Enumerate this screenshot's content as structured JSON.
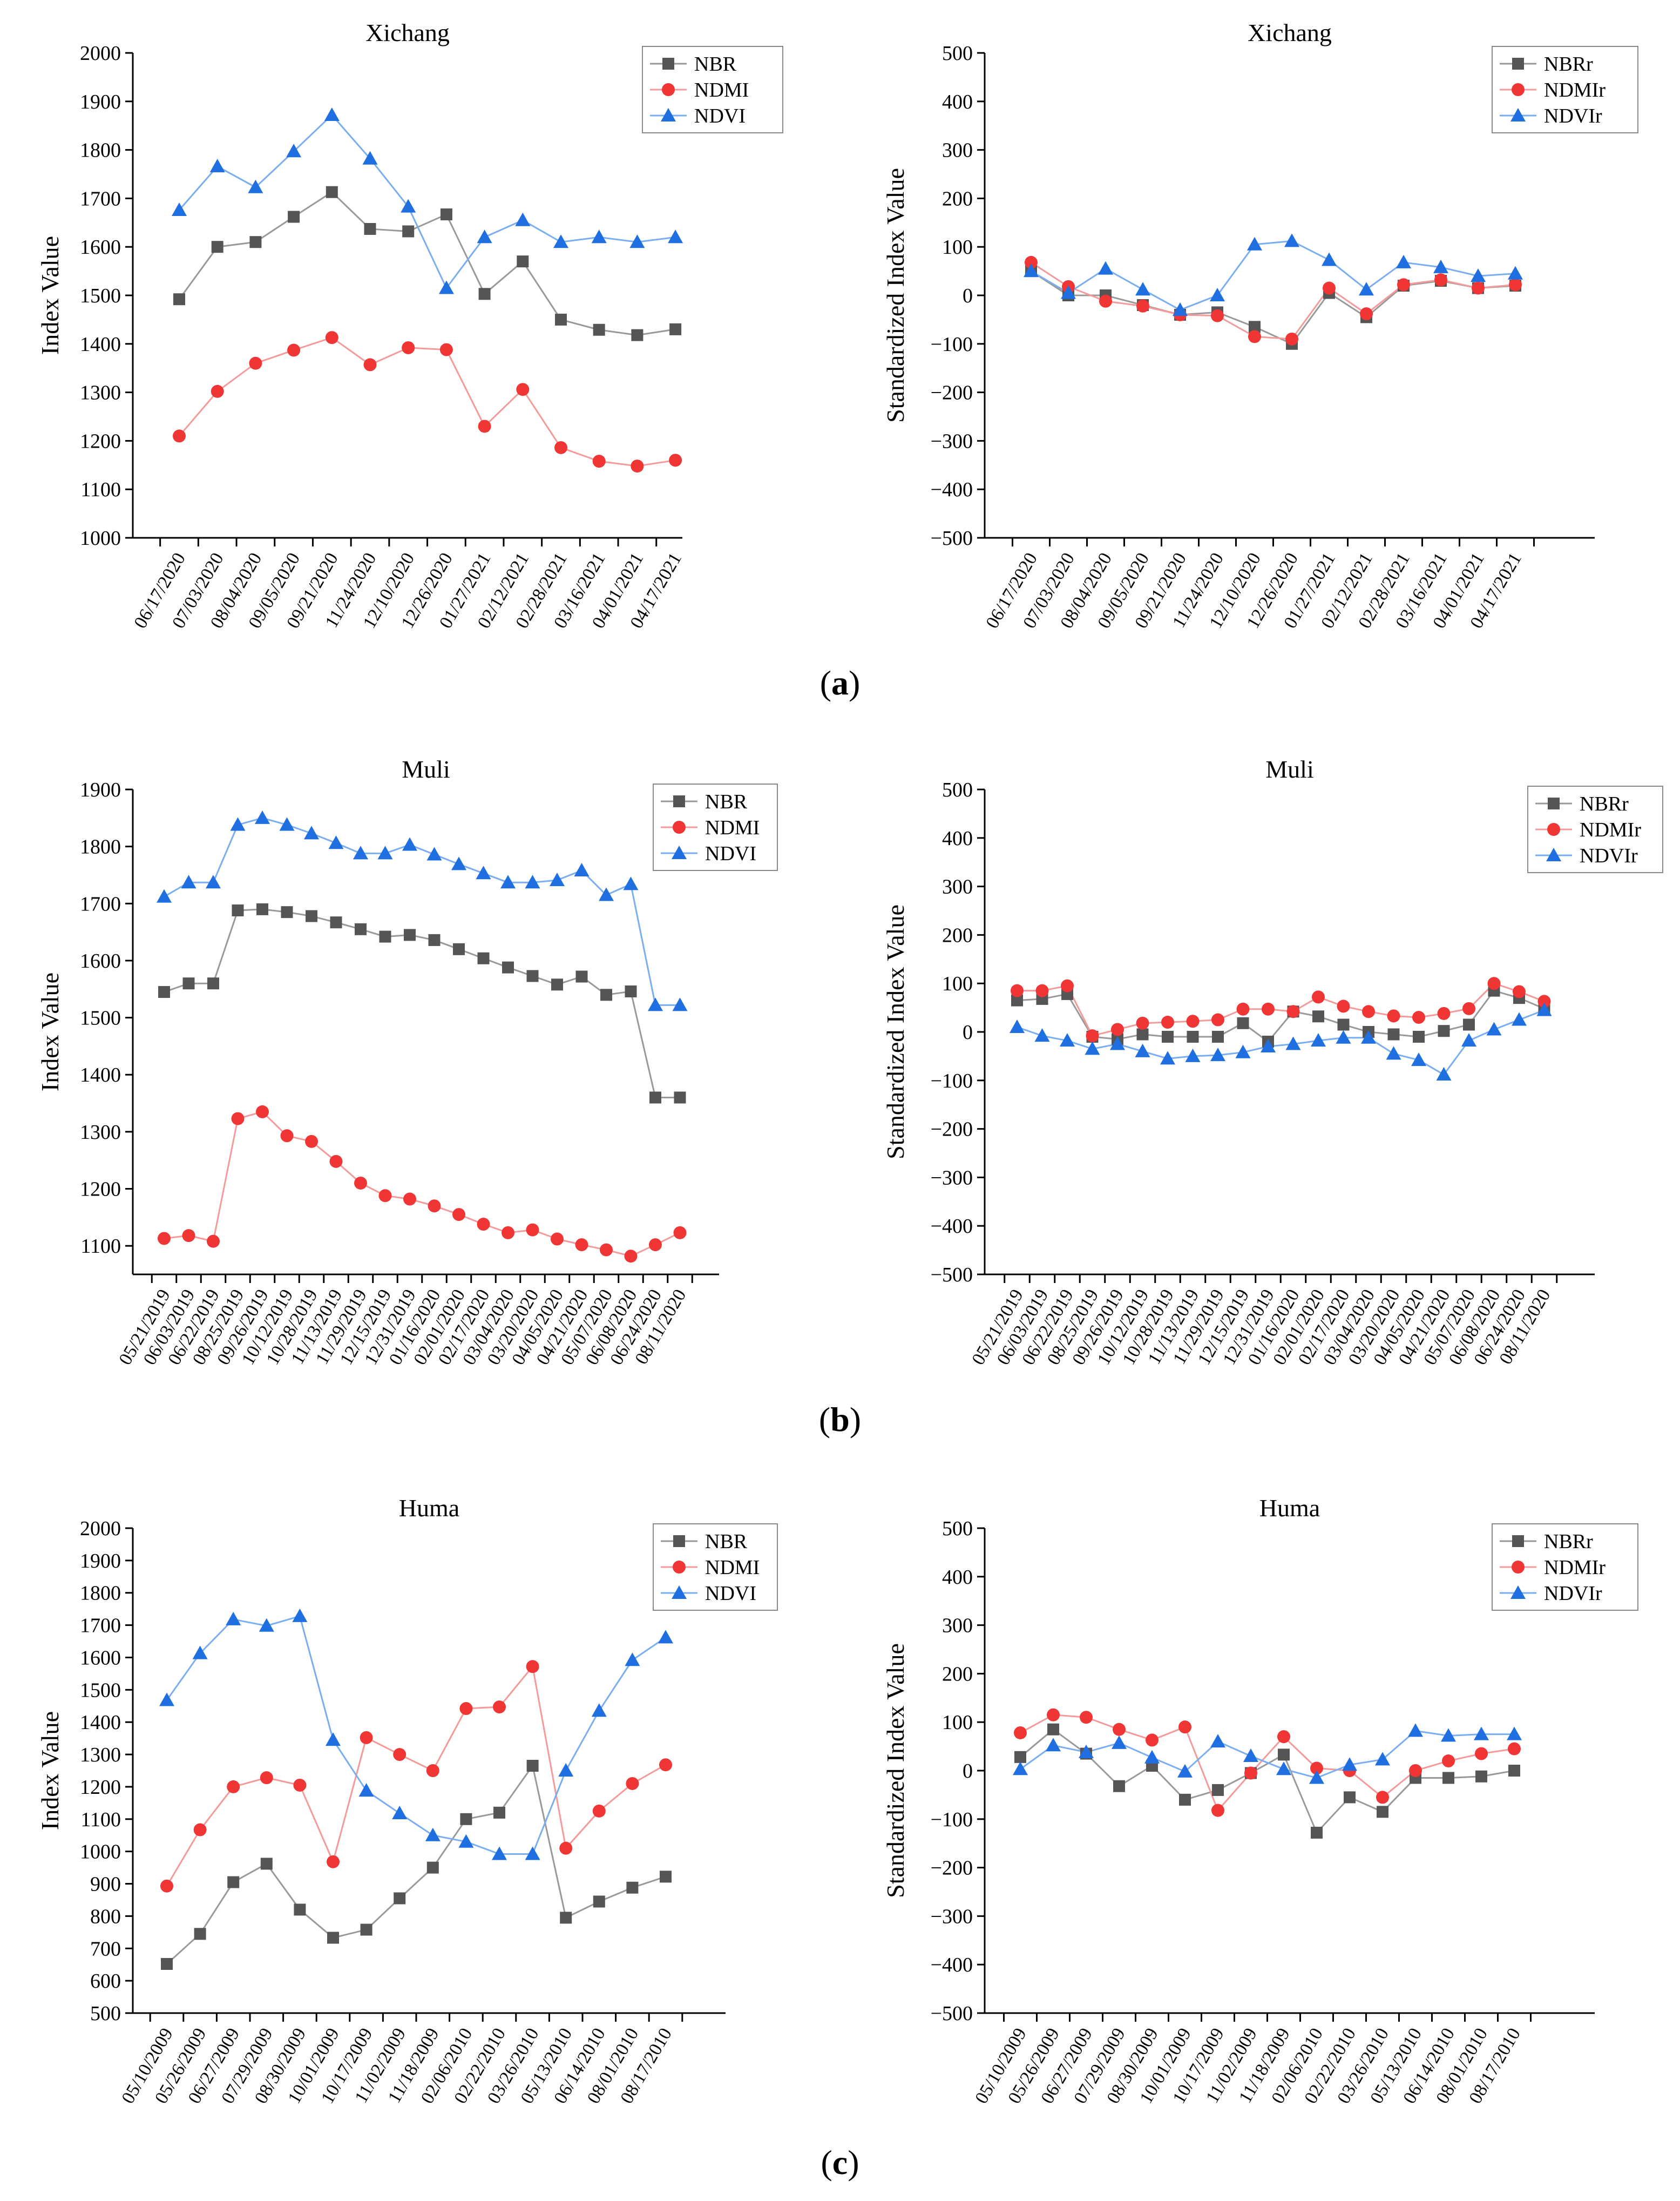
{
  "colors": {
    "NBR": "#555555",
    "NDMI": "#f03535",
    "NDVI": "#1f6fe0",
    "NBR_line": "#999999",
    "NDMI_line": "#f49a9a",
    "NDVI_line": "#7aaef0"
  },
  "panel_labels": [
    "a",
    "b",
    "c"
  ],
  "chart_data": [
    {
      "type": "line",
      "title": "Xichang",
      "xlabel": "",
      "ylabel": "Index Value",
      "ylim": [
        1000,
        2000
      ],
      "yticks": [
        1000,
        1100,
        1200,
        1300,
        1400,
        1500,
        1600,
        1700,
        1800,
        1900,
        2000
      ],
      "legend_position": "top-right",
      "categories": [
        "06/17/2020",
        "07/03/2020",
        "08/04/2020",
        "09/05/2020",
        "09/21/2020",
        "11/24/2020",
        "12/10/2020",
        "12/26/2020",
        "01/27/2021",
        "02/12/2021",
        "02/28/2021",
        "03/16/2021",
        "04/01/2021",
        "04/17/2021"
      ],
      "series": [
        {
          "name": "NBR",
          "marker": "square",
          "values": [
            1492,
            1600,
            1610,
            1662,
            1713,
            1637,
            1632,
            1667,
            1503,
            1570,
            1450,
            1429,
            1418,
            1430
          ]
        },
        {
          "name": "NDMI",
          "marker": "circle",
          "values": [
            1210,
            1302,
            1360,
            1387,
            1413,
            1357,
            1392,
            1388,
            1230,
            1306,
            1186,
            1158,
            1148,
            1160
          ]
        },
        {
          "name": "NDVI",
          "marker": "triangle",
          "values": [
            1676,
            1766,
            1723,
            1797,
            1872,
            1782,
            1683,
            1515,
            1620,
            1655,
            1610,
            1620,
            1610,
            1620
          ]
        }
      ]
    },
    {
      "type": "line",
      "title": "Xichang",
      "xlabel": "",
      "ylabel": "Standardized Index Value",
      "ylim": [
        -500,
        500
      ],
      "yticks": [
        -500,
        -400,
        -300,
        -200,
        -100,
        0,
        100,
        200,
        300,
        400,
        500
      ],
      "legend_position": "top-right",
      "categories": [
        "06/17/2020",
        "07/03/2020",
        "08/04/2020",
        "09/05/2020",
        "09/21/2020",
        "11/24/2020",
        "12/10/2020",
        "12/26/2020",
        "01/27/2021",
        "02/12/2021",
        "02/28/2021",
        "03/16/2021",
        "04/01/2021",
        "04/17/2021"
      ],
      "series": [
        {
          "name": "NBRr",
          "marker": "square",
          "values": [
            50,
            0,
            0,
            -20,
            -40,
            -35,
            -65,
            -100,
            5,
            -45,
            20,
            30,
            15,
            20
          ]
        },
        {
          "name": "NDMIr",
          "marker": "circle",
          "values": [
            68,
            18,
            -12,
            -22,
            -40,
            -42,
            -85,
            -90,
            15,
            -38,
            22,
            32,
            15,
            22
          ]
        },
        {
          "name": "NDVIr",
          "marker": "triangle",
          "values": [
            50,
            5,
            55,
            12,
            -30,
            0,
            105,
            112,
            73,
            12,
            68,
            58,
            40,
            45
          ]
        }
      ]
    },
    {
      "type": "line",
      "title": "Muli",
      "xlabel": "",
      "ylabel": "Index Value",
      "ylim": [
        1050,
        1900
      ],
      "yticks": [
        1100,
        1200,
        1300,
        1400,
        1500,
        1600,
        1700,
        1800,
        1900
      ],
      "legend_position": "top-right",
      "categories": [
        "05/21/2019",
        "06/03/2019",
        "06/22/2019",
        "08/25/2019",
        "09/26/2019",
        "10/12/2019",
        "10/28/2019",
        "11/13/2019",
        "11/29/2019",
        "12/15/2019",
        "12/31/2019",
        "01/16/2020",
        "02/01/2020",
        "02/17/2020",
        "03/04/2020",
        "03/20/2020",
        "04/05/2020",
        "04/21/2020",
        "05/07/2020",
        "06/08/2020",
        "06/24/2020",
        "08/11/2020"
      ],
      "series": [
        {
          "name": "NBR",
          "marker": "square",
          "values": [
            1545,
            1560,
            1560,
            1688,
            1690,
            1685,
            1678,
            1667,
            1655,
            1642,
            1645,
            1636,
            1620,
            1604,
            1588,
            1573,
            1558,
            1572,
            1540,
            1546,
            1360,
            1360
          ]
        },
        {
          "name": "NDMI",
          "marker": "circle",
          "values": [
            1113,
            1118,
            1108,
            1323,
            1335,
            1293,
            1283,
            1248,
            1210,
            1188,
            1182,
            1170,
            1155,
            1138,
            1123,
            1128,
            1112,
            1102,
            1093,
            1082,
            1102,
            1123
          ]
        },
        {
          "name": "NDVI",
          "marker": "triangle",
          "values": [
            1712,
            1737,
            1737,
            1838,
            1850,
            1838,
            1823,
            1806,
            1788,
            1788,
            1803,
            1786,
            1769,
            1753,
            1737,
            1737,
            1741,
            1758,
            1715,
            1734,
            1522,
            1522
          ]
        }
      ]
    },
    {
      "type": "line",
      "title": "Muli",
      "xlabel": "",
      "ylabel": "Standardized Index Value",
      "ylim": [
        -500,
        500
      ],
      "yticks": [
        -500,
        -400,
        -300,
        -200,
        -100,
        0,
        100,
        200,
        300,
        400,
        500
      ],
      "legend_position": "top-right",
      "categories": [
        "05/21/2019",
        "06/03/2019",
        "06/22/2019",
        "08/25/2019",
        "09/26/2019",
        "10/12/2019",
        "10/28/2019",
        "11/13/2019",
        "11/29/2019",
        "12/15/2019",
        "12/31/2019",
        "01/16/2020",
        "02/01/2020",
        "02/17/2020",
        "03/04/2020",
        "03/20/2020",
        "04/05/2020",
        "04/21/2020",
        "05/07/2020",
        "06/08/2020",
        "06/24/2020",
        "08/11/2020"
      ],
      "series": [
        {
          "name": "NBRr",
          "marker": "square",
          "values": [
            65,
            68,
            78,
            -10,
            -15,
            -5,
            -10,
            -10,
            -10,
            18,
            -20,
            42,
            32,
            15,
            0,
            -5,
            -10,
            2,
            15,
            85,
            70,
            48
          ]
        },
        {
          "name": "NDMIr",
          "marker": "circle",
          "values": [
            85,
            85,
            95,
            -8,
            5,
            18,
            20,
            22,
            25,
            47,
            47,
            42,
            72,
            53,
            42,
            33,
            30,
            38,
            48,
            100,
            83,
            63
          ]
        },
        {
          "name": "NDVIr",
          "marker": "triangle",
          "values": [
            10,
            -8,
            -18,
            -35,
            -25,
            -40,
            -55,
            -50,
            -48,
            -42,
            -30,
            -25,
            -18,
            -12,
            -12,
            -45,
            -58,
            -88,
            -18,
            5,
            25,
            45
          ]
        }
      ]
    },
    {
      "type": "line",
      "title": "Huma",
      "xlabel": "",
      "ylabel": "Index Value",
      "ylim": [
        500,
        2000
      ],
      "yticks": [
        500,
        600,
        700,
        800,
        900,
        1000,
        1100,
        1200,
        1300,
        1400,
        1500,
        1600,
        1700,
        1800,
        1900,
        2000
      ],
      "legend_position": "top-right",
      "categories": [
        "05/10/2009",
        "05/26/2009",
        "06/27/2009",
        "07/29/2009",
        "08/30/2009",
        "10/01/2009",
        "10/17/2009",
        "11/02/2009",
        "11/18/2009",
        "02/06/2010",
        "02/22/2010",
        "03/26/2010",
        "05/13/2010",
        "06/14/2010",
        "08/01/2010",
        "08/17/2010"
      ],
      "series": [
        {
          "name": "NBR",
          "marker": "square",
          "values": [
            652,
            745,
            905,
            962,
            820,
            733,
            758,
            855,
            950,
            1100,
            1120,
            1265,
            795,
            845,
            888,
            922
          ]
        },
        {
          "name": "NDMI",
          "marker": "circle",
          "values": [
            893,
            1067,
            1200,
            1228,
            1205,
            968,
            1352,
            1300,
            1250,
            1442,
            1447,
            1572,
            1010,
            1125,
            1210,
            1268
          ]
        },
        {
          "name": "NDVI",
          "marker": "triangle",
          "values": [
            1468,
            1613,
            1718,
            1698,
            1728,
            1345,
            1188,
            1118,
            1050,
            1030,
            992,
            992,
            1250,
            1435,
            1592,
            1662
          ]
        }
      ]
    },
    {
      "type": "line",
      "title": "Huma",
      "xlabel": "",
      "ylabel": "Standardized Index Value",
      "ylim": [
        -500,
        500
      ],
      "yticks": [
        -500,
        -400,
        -300,
        -200,
        -100,
        0,
        100,
        200,
        300,
        400,
        500
      ],
      "legend_position": "top-right",
      "categories": [
        "05/10/2009",
        "05/26/2009",
        "06/27/2009",
        "07/29/2009",
        "08/30/2009",
        "10/01/2009",
        "10/17/2009",
        "11/02/2009",
        "11/18/2009",
        "02/06/2010",
        "02/22/2010",
        "03/26/2010",
        "05/13/2010",
        "06/14/2010",
        "08/01/2010",
        "08/17/2010"
      ],
      "series": [
        {
          "name": "NBRr",
          "marker": "square",
          "values": [
            28,
            85,
            35,
            -32,
            10,
            -60,
            -40,
            -5,
            33,
            -128,
            -55,
            -85,
            -15,
            -15,
            -12,
            0
          ]
        },
        {
          "name": "NDMIr",
          "marker": "circle",
          "values": [
            78,
            115,
            110,
            85,
            63,
            90,
            -82,
            -5,
            70,
            5,
            0,
            -55,
            0,
            20,
            35,
            45
          ]
        },
        {
          "name": "NDVIr",
          "marker": "triangle",
          "values": [
            3,
            52,
            38,
            57,
            27,
            -2,
            60,
            30,
            3,
            -15,
            12,
            23,
            82,
            72,
            75,
            75
          ]
        }
      ]
    }
  ]
}
